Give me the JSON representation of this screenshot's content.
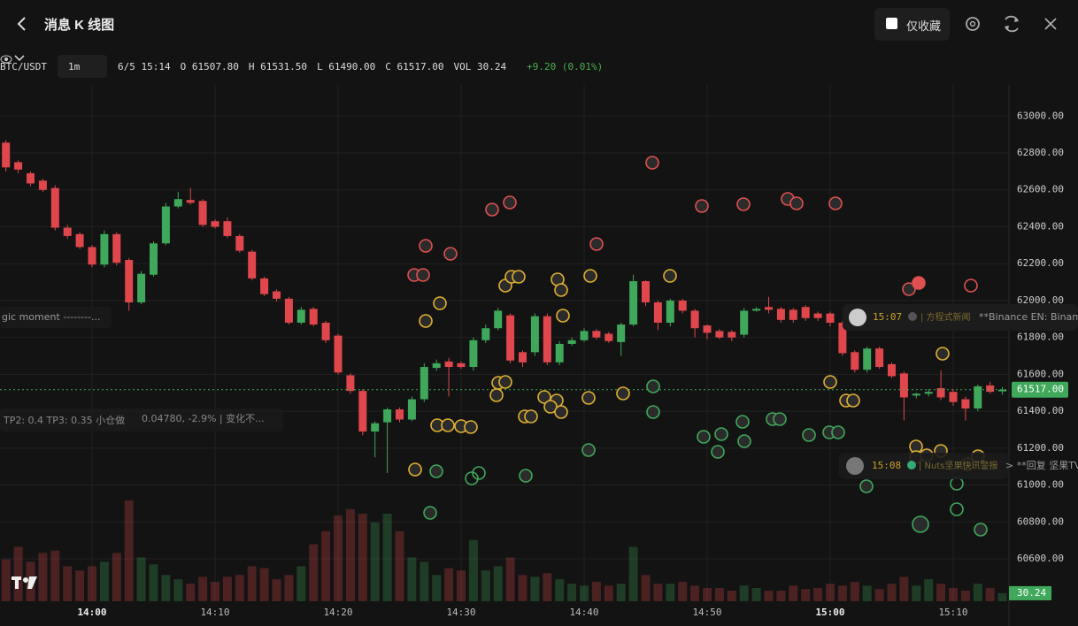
{
  "header": {
    "title": "消息 K 线图",
    "favorite_only": "仅收藏",
    "symbol": "BTC/USDT",
    "interval": "1m",
    "info": [
      "6/5 15:14",
      "O 61507.80",
      "H 61531.50",
      "L 61490.00",
      "C 61517.00",
      "VOL 30.24"
    ],
    "change": "+9.20 (0.01%)"
  },
  "annotations": {
    "left_1": "gic moment --------...",
    "left_2": "TP2: 0.4 TP3: 0.35 小仓做",
    "left_3": "0.04780, -2.9% | 变化不...",
    "news_1_time": "15:07",
    "news_1_source": "| 方程式新闻",
    "news_1_text": "**Binance EN: Binanc",
    "news_2_time": "15:08",
    "news_2_source": "| Nuts坚果快讯警报",
    "news_2_text": "> **回复 坚果TV"
  },
  "chart_data": {
    "type": "candlestick",
    "up_color": "#3fa85a",
    "down_color": "#e0474c",
    "categories": [
      null,
      null,
      null,
      null,
      null,
      null,
      null,
      "14:00",
      null,
      null,
      null,
      null,
      null,
      null,
      null,
      null,
      null,
      "14:10",
      null,
      null,
      null,
      null,
      null,
      null,
      null,
      null,
      null,
      "14:20",
      null,
      null,
      null,
      null,
      null,
      null,
      null,
      null,
      null,
      "14:30",
      null,
      null,
      null,
      null,
      null,
      null,
      null,
      null,
      null,
      "14:40",
      null,
      null,
      null,
      null,
      null,
      null,
      null,
      null,
      null,
      "14:50",
      null,
      null,
      null,
      null,
      null,
      null,
      null,
      null,
      null,
      "15:00",
      null,
      null,
      null,
      null,
      null,
      null,
      null,
      null,
      null,
      "15:10",
      null,
      null,
      null,
      null
    ],
    "open": [
      62856,
      62750,
      62690,
      62650,
      62610,
      62395,
      62360,
      62290,
      62195,
      62360,
      62220,
      61990,
      62140,
      62310,
      62510,
      62545,
      62540,
      62430,
      62430,
      62350,
      62265,
      62120,
      62050,
      62010,
      61880,
      61955,
      61880,
      61810,
      61595,
      61510,
      61290,
      61340,
      61410,
      61355,
      61465,
      61635,
      61670,
      61660,
      61640,
      61785,
      61850,
      61920,
      61720,
      61720,
      61915,
      61665,
      61765,
      61785,
      61835,
      61820,
      61775,
      61870,
      62105,
      61990,
      61880,
      62000,
      61945,
      61865,
      61835,
      61830,
      61815,
      61945,
      61965,
      61955,
      61950,
      61965,
      61930,
      61930,
      61880,
      61720,
      61625,
      61740,
      61655,
      61605,
      61485,
      61495,
      61525,
      61505,
      61465,
      61415,
      61540,
      61507.8
    ],
    "high": [
      62870,
      62760,
      62700,
      62660,
      62625,
      62410,
      62370,
      62300,
      62380,
      62370,
      62230,
      62160,
      62320,
      62530,
      62590,
      62610,
      62550,
      62440,
      62450,
      62360,
      62275,
      62130,
      62060,
      62020,
      61965,
      61965,
      61890,
      61820,
      61605,
      61520,
      61345,
      61420,
      61420,
      61480,
      61660,
      61680,
      61690,
      61670,
      61800,
      61870,
      61960,
      61930,
      61730,
      61930,
      61930,
      61780,
      61800,
      61850,
      61845,
      61830,
      61880,
      62140,
      62110,
      62000,
      62010,
      62010,
      61955,
      61870,
      61845,
      61840,
      61960,
      61965,
      62020,
      61965,
      61960,
      61975,
      61940,
      61940,
      61890,
      61730,
      61750,
      61750,
      61665,
      61615,
      61500,
      61520,
      61620,
      61520,
      61480,
      61545,
      61560,
      61531.5
    ],
    "low": [
      62700,
      62690,
      62620,
      62590,
      62380,
      62335,
      62280,
      62180,
      62180,
      62190,
      61945,
      61980,
      62130,
      62300,
      62500,
      62520,
      62400,
      62390,
      62340,
      62260,
      62110,
      62025,
      61995,
      61870,
      61870,
      61860,
      61770,
      61600,
      61495,
      61270,
      61150,
      61065,
      61340,
      61345,
      61450,
      61620,
      61480,
      61630,
      61620,
      61770,
      61840,
      61660,
      61640,
      61700,
      61650,
      61650,
      61755,
      61775,
      61790,
      61770,
      61700,
      61860,
      61970,
      61840,
      61860,
      61930,
      61800,
      61790,
      61790,
      61780,
      61800,
      61940,
      61930,
      61880,
      61880,
      61890,
      61890,
      61860,
      61700,
      61610,
      61610,
      61630,
      61580,
      61350,
      61470,
      61480,
      61460,
      61430,
      61350,
      61400,
      61495,
      61490
    ],
    "close": [
      62722,
      62710,
      62635,
      62600,
      62395,
      62350,
      62290,
      62195,
      62360,
      62205,
      61990,
      62145,
      62310,
      62510,
      62550,
      62530,
      62410,
      62400,
      62350,
      62270,
      62120,
      62035,
      62010,
      61880,
      61950,
      61870,
      61785,
      61610,
      61510,
      61290,
      61335,
      61410,
      61355,
      61465,
      61640,
      61660,
      61640,
      61640,
      61785,
      61850,
      61945,
      61675,
      61665,
      61915,
      61665,
      61765,
      61785,
      61835,
      61800,
      61780,
      61870,
      62105,
      61990,
      61880,
      62000,
      61945,
      61850,
      61825,
      61800,
      61800,
      61945,
      61955,
      61950,
      61895,
      61895,
      61905,
      61905,
      61880,
      61715,
      61625,
      61740,
      61640,
      61590,
      61475,
      61495,
      61505,
      61475,
      61450,
      61415,
      61535,
      61505,
      61517
    ],
    "volume": [
      158,
      205,
      149,
      182,
      191,
      132,
      116,
      132,
      149,
      182,
      380,
      165,
      139,
      99,
      83,
      66,
      92,
      73,
      92,
      99,
      132,
      125,
      83,
      99,
      132,
      215,
      264,
      323,
      347,
      330,
      297,
      330,
      264,
      165,
      149,
      99,
      125,
      116,
      231,
      116,
      132,
      165,
      99,
      92,
      106,
      83,
      66,
      59,
      73,
      59,
      66,
      205,
      99,
      66,
      66,
      73,
      59,
      50,
      50,
      40,
      59,
      50,
      40,
      40,
      59,
      46,
      50,
      66,
      59,
      73,
      59,
      46,
      66,
      92,
      59,
      83,
      66,
      50,
      40,
      66,
      50,
      30.24
    ],
    "ylim": [
      60370,
      63150
    ],
    "yticks": [
      {
        "value": 60600,
        "label": "60600.00"
      },
      {
        "value": 60800,
        "label": "60800.00"
      },
      {
        "value": 61000,
        "label": "61000.00"
      },
      {
        "value": 61200,
        "label": "61200.00"
      },
      {
        "value": 61400,
        "label": "61400.00"
      },
      {
        "value": 61600,
        "label": "61600.00"
      },
      {
        "value": 61800,
        "label": "61800.00"
      },
      {
        "value": 62000,
        "label": "62000.00"
      },
      {
        "value": 62200,
        "label": "62200.00"
      },
      {
        "value": 62400,
        "label": "62400.00"
      },
      {
        "value": 62600,
        "label": "62600.00"
      },
      {
        "value": 62800,
        "label": "62800.00"
      },
      {
        "value": 63000,
        "label": "63000.00"
      }
    ],
    "volume_lim": [
      0,
      400
    ],
    "price_marker": {
      "value": 61517,
      "label": "61517.00"
    },
    "volume_marker": 30.24,
    "grid": true
  }
}
